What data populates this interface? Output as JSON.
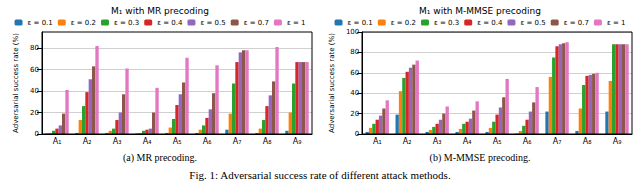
{
  "caption": "Fig. 1: Adversarial success rate of different attack methods.",
  "chart_data": [
    {
      "type": "bar",
      "title": "M₁ with MR precoding",
      "subtitle": "(a) MR precoding.",
      "y_label": "Adversarial success rate (%)",
      "categories": [
        "A₁",
        "A₂",
        "A₃",
        "A₄",
        "A₅",
        "A₆",
        "A₇",
        "A₈",
        "A₉"
      ],
      "series": [
        {
          "name": "ε = 0.1",
          "color": "#1f77b4",
          "values": [
            0.5,
            1,
            1,
            0.5,
            1,
            1,
            4,
            1,
            3
          ]
        },
        {
          "name": "ε = 0.2",
          "color": "#ff7f0e",
          "values": [
            1,
            13,
            3,
            1,
            6,
            4,
            19,
            5,
            20
          ]
        },
        {
          "name": "ε = 0.3",
          "color": "#2ca02c",
          "values": [
            3,
            26,
            5,
            3,
            14,
            8,
            47,
            13,
            47
          ]
        },
        {
          "name": "ε = 0.4",
          "color": "#d62728",
          "values": [
            5,
            39,
            13,
            4,
            27,
            15,
            67,
            26,
            67
          ]
        },
        {
          "name": "ε = 0.5",
          "color": "#9467bd",
          "values": [
            8,
            51,
            20,
            5,
            37,
            23,
            76,
            36,
            67
          ]
        },
        {
          "name": "ε = 0.7",
          "color": "#8c564b",
          "values": [
            19,
            63,
            37,
            20,
            48,
            38,
            78,
            49,
            67
          ]
        },
        {
          "name": "ε = 1",
          "color": "#e377c2",
          "values": [
            41,
            82,
            61,
            43,
            71,
            64,
            78,
            81,
            67
          ]
        }
      ],
      "ylim": [
        0,
        95
      ],
      "yticks": [
        0,
        20,
        40,
        60,
        80
      ],
      "grid": true,
      "legend": "top"
    },
    {
      "type": "bar",
      "title": "M₁ with M-MMSE precoding",
      "subtitle": "(b) M-MMSE precoding.",
      "y_label": "Adversarial success rate (%)",
      "categories": [
        "A₁",
        "A₂",
        "A₃",
        "A₄",
        "A₅",
        "A₆",
        "A₇",
        "A₈",
        "A₉"
      ],
      "series": [
        {
          "name": "ε = 0.1",
          "color": "#1f77b4",
          "values": [
            2,
            19,
            2,
            2,
            2,
            0.5,
            22,
            3,
            22
          ]
        },
        {
          "name": "ε = 0.2",
          "color": "#ff7f0e",
          "values": [
            6,
            42,
            4,
            5,
            6,
            3,
            56,
            25,
            52
          ]
        },
        {
          "name": "ε = 0.3",
          "color": "#2ca02c",
          "values": [
            10,
            55,
            7,
            10,
            12,
            8,
            75,
            48,
            88
          ]
        },
        {
          "name": "ε = 0.4",
          "color": "#d62728",
          "values": [
            14,
            61,
            10,
            12,
            19,
            14,
            86,
            57,
            88
          ]
        },
        {
          "name": "ε = 0.5",
          "color": "#9467bd",
          "values": [
            18,
            65,
            14,
            15,
            26,
            22,
            88,
            58,
            88
          ]
        },
        {
          "name": "ε = 0.7",
          "color": "#8c564b",
          "values": [
            25,
            68,
            20,
            23,
            36,
            31,
            89,
            59,
            88
          ]
        },
        {
          "name": "ε = 1",
          "color": "#e377c2",
          "values": [
            33,
            72,
            27,
            32,
            54,
            46,
            90,
            60,
            88
          ]
        }
      ],
      "ylim": [
        0,
        100
      ],
      "yticks": [
        0,
        20,
        40,
        60,
        80,
        100
      ],
      "grid": true,
      "legend": "top"
    }
  ]
}
